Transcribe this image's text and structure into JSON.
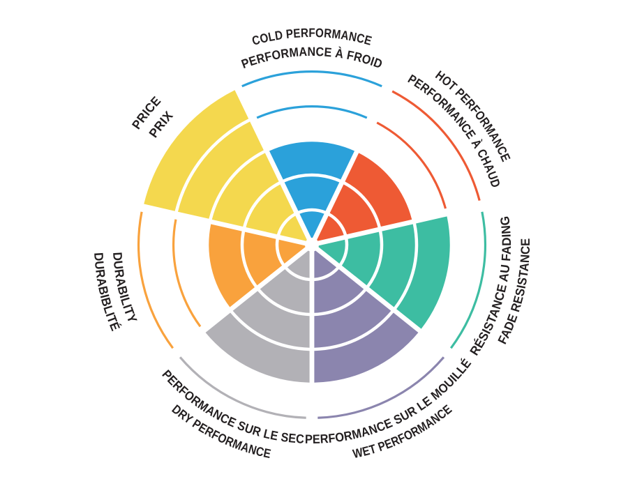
{
  "page": {
    "background": "#ffffff",
    "text_color": "#231f20"
  },
  "chart_data": {
    "type": "radial-rating-wheel",
    "levels": 5,
    "max": 5,
    "grid": "concentric-rings-with-white-separators",
    "legend_position": "labels-curved-around-rim",
    "categories": [
      {
        "id": "cold",
        "label_outer": "COLD PERFORMANCE",
        "label_inner": "PERFORMANCE À FROID",
        "value": 3,
        "color": "#2ba1da",
        "flipped": false
      },
      {
        "id": "hot",
        "label_outer": "HOT PERFORMANCE",
        "label_inner": "PERFORMANCE À CHAUD",
        "value": 3,
        "color": "#ee5a34",
        "flipped": false
      },
      {
        "id": "fade",
        "label_outer": "FADE RESISTANCE",
        "label_inner": "RÉSISTANCE AU FADING",
        "value": 4,
        "color": "#3dbda2",
        "flipped": true
      },
      {
        "id": "wet",
        "label_outer": "WET PERFORMANCE",
        "label_inner": "PERFORMANCE SUR LE MOUILLÉ",
        "value": 4,
        "color": "#8b85ae",
        "flipped": true
      },
      {
        "id": "dry",
        "label_outer": "DRY PERFORMANCE",
        "label_inner": "PERFORMANCE SUR LE SEC",
        "value": 4,
        "color": "#b2b1b6",
        "flipped": true
      },
      {
        "id": "durability",
        "label_outer": "DURABIBLITÉ",
        "label_inner": "DURABILITY",
        "value": 3,
        "color": "#f9a23d",
        "flipped": true
      },
      {
        "id": "price",
        "label_outer": "PRICE",
        "label_inner": "PRIX",
        "value": 5,
        "color": "#f4d84e",
        "flipped": false
      }
    ]
  }
}
